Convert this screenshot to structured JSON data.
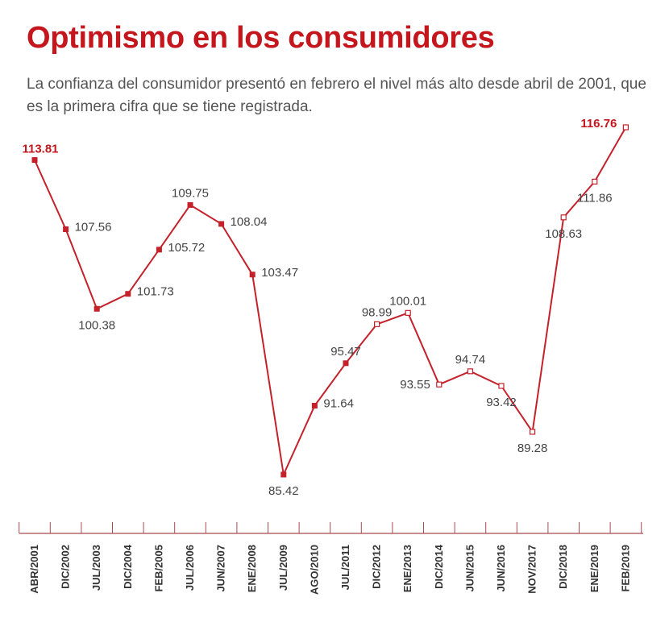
{
  "header": {
    "title": "Optimismo en los consumidores",
    "subtitle": "La confianza del consumidor presentó en febrero el nivel más alto desde abril de 2001, que es la primera cifra que se tiene registrada."
  },
  "colors": {
    "accent": "#c4161c",
    "line": "#c4212b",
    "axis": "#a94a50",
    "text": "#444444"
  },
  "chart_data": {
    "type": "line",
    "title": "Optimismo en los consumidores",
    "categories": [
      "ABR/2001",
      "DIC/2002",
      "JUL/2003",
      "DIC/2004",
      "FEB/2005",
      "JUL/2006",
      "JUN/2007",
      "ENE/2008",
      "JUL/2009",
      "AGO/2010",
      "JUL/2011",
      "DIC/2012",
      "ENE/2013",
      "DIC/2014",
      "JUN/2015",
      "JUN/2016",
      "NOV/2017",
      "DIC/2018",
      "ENE/2019",
      "FEB/2019"
    ],
    "values": [
      113.81,
      107.56,
      100.38,
      101.73,
      105.72,
      109.75,
      108.04,
      103.47,
      85.42,
      91.64,
      95.47,
      98.99,
      100.01,
      93.55,
      94.74,
      93.42,
      89.28,
      108.63,
      111.86,
      116.76
    ],
    "highlight": [
      "ABR/2001",
      "FEB/2019"
    ],
    "marker_style": {
      "filled": [
        "ABR/2001",
        "DIC/2002",
        "JUL/2003",
        "DIC/2004",
        "FEB/2005",
        "JUL/2006",
        "JUN/2007",
        "ENE/2008",
        "JUL/2009",
        "AGO/2010",
        "JUL/2011"
      ],
      "hollow": [
        "DIC/2012",
        "ENE/2013",
        "DIC/2014",
        "JUN/2015",
        "JUN/2016",
        "NOV/2017",
        "DIC/2018",
        "ENE/2019",
        "FEB/2019"
      ]
    },
    "label_placement": [
      "above",
      "right",
      "below",
      "right",
      "right",
      "above",
      "right",
      "right",
      "below",
      "right",
      "above",
      "above",
      "above",
      "left",
      "above",
      "below",
      "below",
      "below",
      "below",
      "left"
    ],
    "grid": false,
    "legend": "none"
  }
}
